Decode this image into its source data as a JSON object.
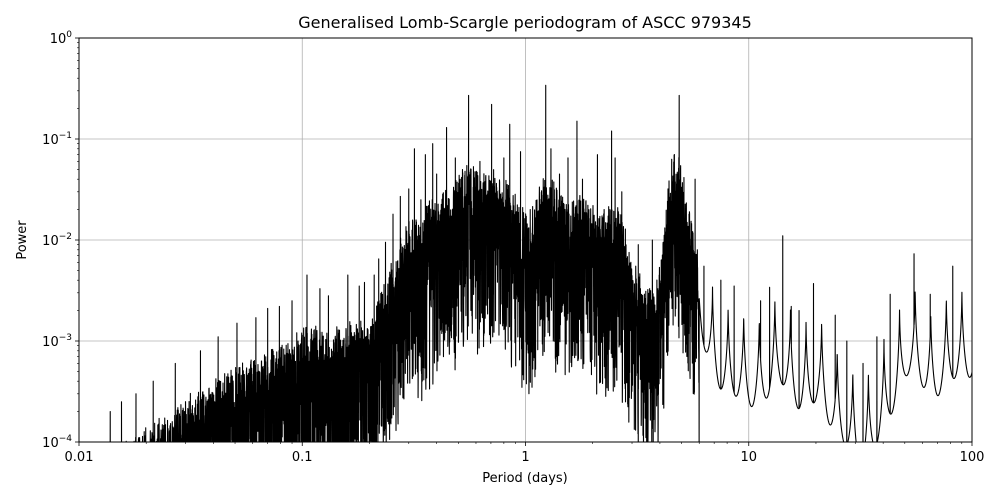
{
  "chart_data": {
    "type": "line",
    "title": "Generalised Lomb-Scargle periodogram of ASCC 979345",
    "xlabel": "Period (days)",
    "ylabel": "Power",
    "xscale": "log",
    "yscale": "log",
    "xlim": [
      0.01,
      100
    ],
    "ylim": [
      0.0001,
      1
    ],
    "grid": true,
    "line_color": "#000000",
    "x_ticks": [
      {
        "value": 0.01,
        "label": "0.01"
      },
      {
        "value": 0.1,
        "label": "0.1"
      },
      {
        "value": 1,
        "label": "1"
      },
      {
        "value": 10,
        "label": "10"
      },
      {
        "value": 100,
        "label": "100"
      }
    ],
    "y_ticks": [
      {
        "value": 0.0001,
        "base": "10",
        "exp": "−4"
      },
      {
        "value": 0.001,
        "base": "10",
        "exp": "−3"
      },
      {
        "value": 0.01,
        "base": "10",
        "exp": "−2"
      },
      {
        "value": 0.1,
        "base": "10",
        "exp": "−1"
      },
      {
        "value": 1,
        "base": "10",
        "exp": "0"
      }
    ],
    "series": [
      {
        "peaks": [
          [
            0.0138,
            0.0002
          ],
          [
            0.0155,
            0.00025
          ],
          [
            0.018,
            0.0003
          ],
          [
            0.0215,
            0.0004
          ],
          [
            0.027,
            0.0006
          ],
          [
            0.035,
            0.0008
          ],
          [
            0.042,
            0.0011
          ],
          [
            0.051,
            0.0015
          ],
          [
            0.062,
            0.0017
          ],
          [
            0.07,
            0.0021
          ],
          [
            0.079,
            0.0022
          ],
          [
            0.09,
            0.0025
          ],
          [
            0.105,
            0.0045
          ],
          [
            0.12,
            0.0033
          ],
          [
            0.131,
            0.0028
          ],
          [
            0.16,
            0.0045
          ],
          [
            0.18,
            0.0035
          ],
          [
            0.19,
            0.0038
          ],
          [
            0.21,
            0.0045
          ],
          [
            0.22,
            0.0065
          ],
          [
            0.236,
            0.0095
          ],
          [
            0.255,
            0.018
          ],
          [
            0.275,
            0.027
          ],
          [
            0.3,
            0.032
          ],
          [
            0.318,
            0.08
          ],
          [
            0.34,
            0.025
          ],
          [
            0.356,
            0.07
          ],
          [
            0.384,
            0.09
          ],
          [
            0.4,
            0.045
          ],
          [
            0.443,
            0.13
          ],
          [
            0.485,
            0.065
          ],
          [
            0.556,
            0.27
          ],
          [
            0.625,
            0.06
          ],
          [
            0.705,
            0.22
          ],
          [
            0.8,
            0.065
          ],
          [
            0.85,
            0.14
          ],
          [
            0.95,
            0.075
          ],
          [
            1.05,
            0.02
          ],
          [
            1.232,
            0.34
          ],
          [
            1.3,
            0.08
          ],
          [
            1.42,
            0.045
          ],
          [
            1.55,
            0.065
          ],
          [
            1.7,
            0.15
          ],
          [
            1.8,
            0.04
          ],
          [
            2.1,
            0.07
          ],
          [
            2.25,
            0.02
          ],
          [
            2.43,
            0.12
          ],
          [
            2.52,
            0.065
          ],
          [
            2.7,
            0.03
          ],
          [
            3.2,
            0.009
          ],
          [
            3.7,
            0.01
          ],
          [
            4.88,
            0.27
          ],
          [
            5.75,
            0.04
          ],
          [
            6.3,
            0.0055
          ],
          [
            7.5,
            0.004
          ],
          [
            8.6,
            0.0035
          ],
          [
            11.3,
            0.0025
          ],
          [
            12.4,
            0.0034
          ],
          [
            14.2,
            0.011
          ],
          [
            15.5,
            0.0022
          ],
          [
            16.8,
            0.002
          ],
          [
            19.5,
            0.0037
          ],
          [
            24.4,
            0.0018
          ],
          [
            27.5,
            0.001
          ],
          [
            32.5,
            0.0006
          ],
          [
            37.5,
            0.0011
          ],
          [
            43.0,
            0.0029
          ],
          [
            55.0,
            0.0073
          ],
          [
            65.0,
            0.0029
          ],
          [
            82.0,
            0.0055
          ]
        ]
      }
    ]
  }
}
